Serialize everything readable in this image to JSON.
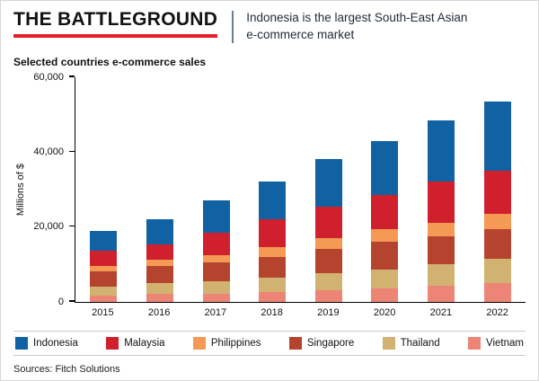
{
  "header": {
    "title": "THE BATTLEGROUND",
    "subtitle_line1": "Indonesia is the largest South-East Asian",
    "subtitle_line2": "e-commerce market",
    "accent_color": "#e51e2a"
  },
  "chart_title": "Selected countries e-commerce sales",
  "source": "Sources: Fitch Solutions",
  "chart_data": {
    "type": "bar",
    "stacked": true,
    "title": "Selected countries e-commerce sales",
    "xlabel": "",
    "ylabel": "Millions of $",
    "ylim": [
      0,
      60000
    ],
    "yticks": [
      "0",
      "20,000",
      "40,000",
      "60,000"
    ],
    "grid": false,
    "legend_position": "bottom",
    "categories": [
      "2015",
      "2016",
      "2017",
      "2018",
      "2019",
      "2020",
      "2021",
      "2022"
    ],
    "series": [
      {
        "name": "Vietnam",
        "color": "#ec8576",
        "values": [
          1500,
          2000,
          2200,
          2500,
          3000,
          3500,
          4200,
          5000
        ]
      },
      {
        "name": "Thailand",
        "color": "#d1b271",
        "values": [
          2500,
          3000,
          3300,
          4000,
          4500,
          5000,
          5800,
          6500
        ]
      },
      {
        "name": "Singapore",
        "color": "#b5442e",
        "values": [
          4000,
          4500,
          5000,
          5500,
          6500,
          7500,
          7500,
          8000
        ]
      },
      {
        "name": "Philippines",
        "color": "#f49a55",
        "values": [
          1500,
          1800,
          2000,
          2500,
          3000,
          3500,
          3500,
          4000
        ]
      },
      {
        "name": "Malaysia",
        "color": "#d0202e",
        "values": [
          4000,
          4000,
          6000,
          7500,
          8500,
          9000,
          11000,
          11500
        ]
      },
      {
        "name": "Indonesia",
        "color": "#1062a2",
        "values": [
          5500,
          6700,
          8500,
          10000,
          12500,
          14500,
          16500,
          18500
        ]
      }
    ],
    "legend_order": [
      "Indonesia",
      "Malaysia",
      "Philippines",
      "Singapore",
      "Thailand",
      "Vietnam"
    ]
  }
}
